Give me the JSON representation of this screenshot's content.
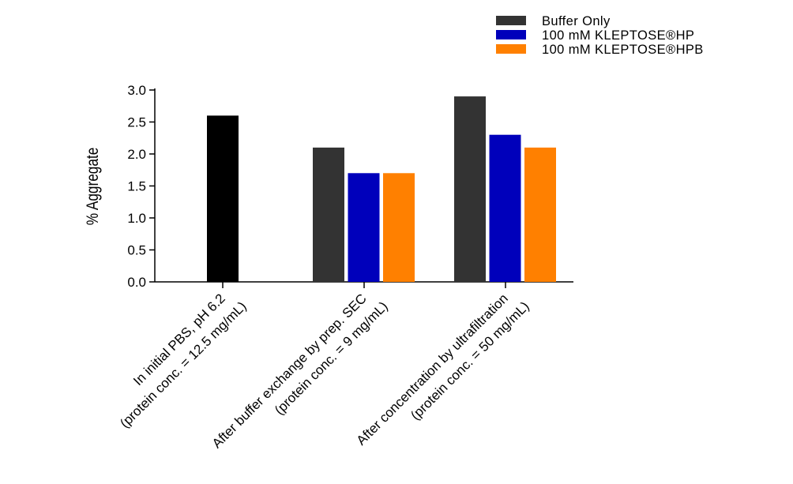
{
  "chart_data": {
    "type": "bar",
    "ylabel": "% Aggregate",
    "ylim": [
      0,
      3.0
    ],
    "yticks": [
      "0.0",
      "0.5",
      "1.0",
      "1.5",
      "2.0",
      "2.5",
      "3.0"
    ],
    "categories": [
      [
        "In initial PBS, pH 6.2",
        "(protein conc. = 12.5 mg/mL)"
      ],
      [
        "After buffer exchange by prep. SEC",
        "(protein conc. = 9 mg/mL)"
      ],
      [
        "After concentration by ultrafiltration",
        "(protein conc. = 50 mg/mL)"
      ]
    ],
    "series": [
      {
        "name": "Buffer Only",
        "values": [
          null,
          2.1,
          2.9
        ]
      },
      {
        "name": "100 mM KLEPTOSE®HP",
        "values": [
          null,
          1.7,
          2.3
        ]
      },
      {
        "name": "100 mM KLEPTOSE®HPB",
        "values": [
          null,
          1.7,
          2.1
        ]
      }
    ],
    "extra_bars": [
      {
        "category_index": 0,
        "value": 2.6
      }
    ],
    "colors": {
      "Buffer Only": "#333333",
      "100 mM KLEPTOSE®HP": "#0000bb",
      "100 mM KLEPTOSE®HPB": "#ff8000",
      "initial": "#000000"
    },
    "legend_position": "top-right"
  }
}
